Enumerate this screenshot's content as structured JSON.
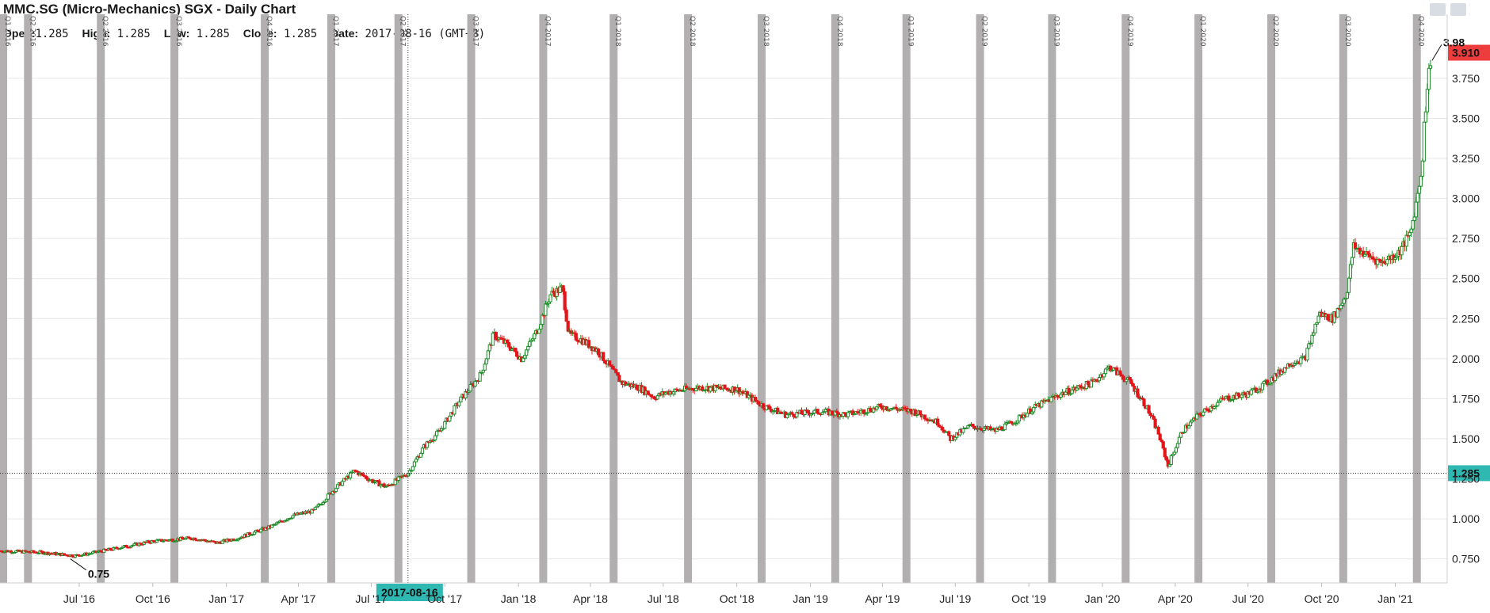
{
  "header": {
    "title": "MMC.SG (Micro-Mechanics) SGX - Daily Chart",
    "open_label": "Open:",
    "open": "1.285",
    "high_label": "High:",
    "high": "1.285",
    "low_label": "Low:",
    "low": "1.285",
    "close_label": "Close:",
    "close": "1.285",
    "date_label": "Date:",
    "date": "2017-08-16",
    "tz": "(GMT+8)"
  },
  "toolbar": {
    "icons": [
      "image-icon",
      "print-icon"
    ]
  },
  "colors": {
    "up": "#1e8e2a",
    "down": "#e3161b",
    "quarter_bar": "#b1afb0",
    "last_price_tag": "#ee3d3d",
    "cursor_tag": "#2fb7b1"
  },
  "chart_data": {
    "type": "candlestick",
    "title": "MMC.SG (Micro-Mechanics) SGX - Daily Chart",
    "ylim": [
      0.6,
      4.15
    ],
    "y_ticks": [
      "0.750",
      "1.000",
      "1.250",
      "1.500",
      "1.750",
      "2.000",
      "2.250",
      "2.500",
      "2.750",
      "3.000",
      "3.250",
      "3.500",
      "3.750"
    ],
    "x_ticks": [
      {
        "label": "Jul '16",
        "date": "2016-07-01"
      },
      {
        "label": "Oct '16",
        "date": "2016-10-01"
      },
      {
        "label": "Jan '17",
        "date": "2017-01-01"
      },
      {
        "label": "Apr '17",
        "date": "2017-04-01"
      },
      {
        "label": "Jul '17",
        "date": "2017-07-01"
      },
      {
        "label": "Oct '17",
        "date": "2017-10-01"
      },
      {
        "label": "Jan '18",
        "date": "2018-01-01"
      },
      {
        "label": "Apr '18",
        "date": "2018-04-01"
      },
      {
        "label": "Jul '18",
        "date": "2018-07-01"
      },
      {
        "label": "Oct '18",
        "date": "2018-10-01"
      },
      {
        "label": "Jan '19",
        "date": "2019-01-01"
      },
      {
        "label": "Apr '19",
        "date": "2019-04-01"
      },
      {
        "label": "Jul '19",
        "date": "2019-07-01"
      },
      {
        "label": "Oct '19",
        "date": "2019-10-01"
      },
      {
        "label": "Jan '20",
        "date": "2020-01-01"
      },
      {
        "label": "Apr '20",
        "date": "2020-04-01"
      },
      {
        "label": "Jul '20",
        "date": "2020-07-01"
      },
      {
        "label": "Oct '20",
        "date": "2020-10-01"
      },
      {
        "label": "Jan '21",
        "date": "2021-01-01"
      }
    ],
    "quarter_bars": [
      {
        "date": "2016-03-28",
        "label": "Q1 2016"
      },
      {
        "date": "2016-04-28",
        "label": "Q2 2016"
      },
      {
        "date": "2016-07-28",
        "label": "Q2 2016"
      },
      {
        "date": "2016-10-28",
        "label": "Q3 2016"
      },
      {
        "date": "2017-02-18",
        "label": "Q4 2016"
      },
      {
        "date": "2017-05-12",
        "label": "Q1 2017"
      },
      {
        "date": "2017-08-04",
        "label": "Q2 2017"
      },
      {
        "date": "2017-11-03",
        "label": "Q3 2017"
      },
      {
        "date": "2018-02-01",
        "label": "Q4 2017"
      },
      {
        "date": "2018-04-30",
        "label": "Q1 2018"
      },
      {
        "date": "2018-08-01",
        "label": "Q2 2018"
      },
      {
        "date": "2018-11-01",
        "label": "Q3 2018"
      },
      {
        "date": "2019-02-01",
        "label": "Q4 2018"
      },
      {
        "date": "2019-05-01",
        "label": "Q1 2019"
      },
      {
        "date": "2019-08-01",
        "label": "Q2 2019"
      },
      {
        "date": "2019-10-30",
        "label": "Q3 2019"
      },
      {
        "date": "2020-01-30",
        "label": "Q4 2019"
      },
      {
        "date": "2020-04-30",
        "label": "Q1 2020"
      },
      {
        "date": "2020-07-30",
        "label": "Q2 2020"
      },
      {
        "date": "2020-10-28",
        "label": "Q3 2020"
      },
      {
        "date": "2021-01-28",
        "label": "Q4 2020"
      }
    ],
    "price_path": [
      [
        "2016-03-24",
        0.8
      ],
      [
        "2016-05-15",
        0.79
      ],
      [
        "2016-06-25",
        0.77
      ],
      [
        "2016-07-10",
        0.78
      ],
      [
        "2016-08-20",
        0.82
      ],
      [
        "2016-10-01",
        0.86
      ],
      [
        "2016-11-20",
        0.88
      ],
      [
        "2016-12-20",
        0.85
      ],
      [
        "2017-01-15",
        0.88
      ],
      [
        "2017-02-25",
        0.95
      ],
      [
        "2017-03-25",
        1.02
      ],
      [
        "2017-04-20",
        1.05
      ],
      [
        "2017-05-15",
        1.18
      ],
      [
        "2017-06-10",
        1.3
      ],
      [
        "2017-07-01",
        1.24
      ],
      [
        "2017-07-20",
        1.2
      ],
      [
        "2017-08-16",
        1.285
      ],
      [
        "2017-09-05",
        1.45
      ],
      [
        "2017-09-25",
        1.55
      ],
      [
        "2017-10-20",
        1.74
      ],
      [
        "2017-11-15",
        1.9
      ],
      [
        "2017-12-01",
        2.15
      ],
      [
        "2017-12-20",
        2.08
      ],
      [
        "2018-01-05",
        2.0
      ],
      [
        "2018-01-25",
        2.18
      ],
      [
        "2018-02-10",
        2.4
      ],
      [
        "2018-02-25",
        2.44
      ],
      [
        "2018-03-05",
        2.15
      ],
      [
        "2018-03-20",
        2.12
      ],
      [
        "2018-04-10",
        2.05
      ],
      [
        "2018-04-25",
        1.95
      ],
      [
        "2018-05-10",
        1.85
      ],
      [
        "2018-06-01",
        1.82
      ],
      [
        "2018-06-20",
        1.76
      ],
      [
        "2018-07-05",
        1.79
      ],
      [
        "2018-08-15",
        1.82
      ],
      [
        "2018-10-01",
        1.81
      ],
      [
        "2018-11-05",
        1.7
      ],
      [
        "2018-12-01",
        1.65
      ],
      [
        "2019-01-15",
        1.67
      ],
      [
        "2019-02-15",
        1.65
      ],
      [
        "2019-04-01",
        1.7
      ],
      [
        "2019-05-10",
        1.67
      ],
      [
        "2019-06-10",
        1.6
      ],
      [
        "2019-06-25",
        1.5
      ],
      [
        "2019-07-20",
        1.58
      ],
      [
        "2019-08-20",
        1.55
      ],
      [
        "2019-09-10",
        1.6
      ],
      [
        "2019-10-10",
        1.7
      ],
      [
        "2019-11-10",
        1.78
      ],
      [
        "2019-12-20",
        1.85
      ],
      [
        "2020-01-10",
        1.95
      ],
      [
        "2020-02-05",
        1.85
      ],
      [
        "2020-02-25",
        1.7
      ],
      [
        "2020-03-10",
        1.55
      ],
      [
        "2020-03-23",
        1.33
      ],
      [
        "2020-04-10",
        1.55
      ],
      [
        "2020-05-01",
        1.65
      ],
      [
        "2020-06-01",
        1.75
      ],
      [
        "2020-07-01",
        1.78
      ],
      [
        "2020-07-25",
        1.85
      ],
      [
        "2020-08-25",
        1.98
      ],
      [
        "2020-09-10",
        2.0
      ],
      [
        "2020-09-28",
        2.28
      ],
      [
        "2020-10-15",
        2.25
      ],
      [
        "2020-11-01",
        2.4
      ],
      [
        "2020-11-10",
        2.7
      ],
      [
        "2020-11-25",
        2.65
      ],
      [
        "2020-12-15",
        2.6
      ],
      [
        "2021-01-05",
        2.66
      ],
      [
        "2021-01-20",
        2.78
      ],
      [
        "2021-01-28",
        3.0
      ],
      [
        "2021-02-03",
        3.18
      ],
      [
        "2021-02-06",
        3.45
      ],
      [
        "2021-02-10",
        3.7
      ],
      [
        "2021-02-15",
        3.91
      ]
    ],
    "annotations": {
      "low_point": {
        "label": "0.75",
        "date": "2016-06-20",
        "value": 0.75
      },
      "high_point": {
        "label": "3.98",
        "date": "2021-02-15",
        "value": 3.98
      },
      "last_price": {
        "label": "3.910",
        "value": 3.91
      },
      "crosshair": {
        "date_label": "2017-08-16",
        "date": "2017-08-16",
        "value_label": "1.285",
        "value": 1.285
      }
    }
  }
}
